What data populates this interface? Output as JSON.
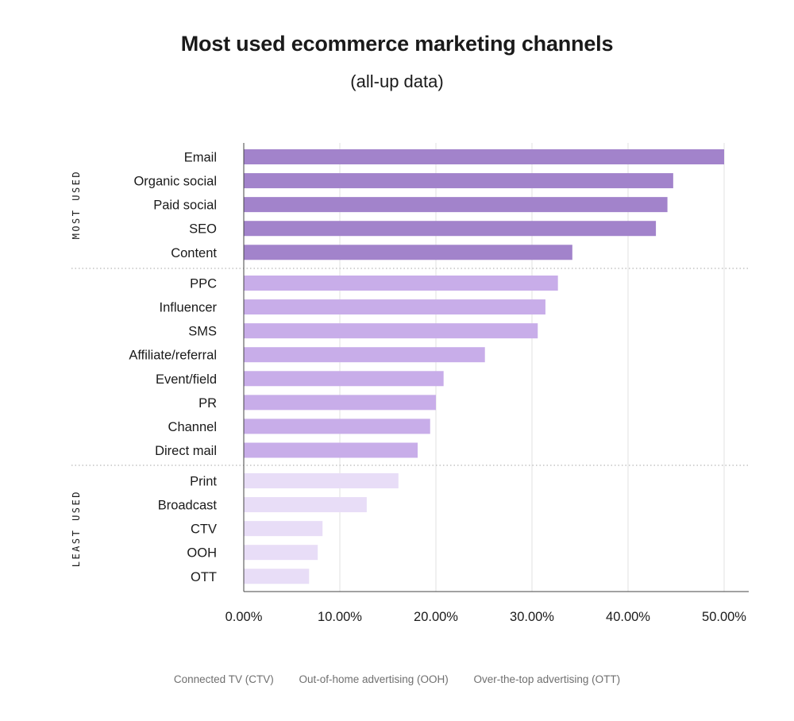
{
  "chart_data": {
    "type": "bar",
    "orientation": "horizontal",
    "title": "Most used ecommerce marketing channels",
    "subtitle": "(all-up data)",
    "categories": [
      "Email",
      "Organic social",
      "Paid social",
      "SEO",
      "Content",
      "PPC",
      "Influencer",
      "SMS",
      "Affiliate/referral",
      "Event/field",
      "PR",
      "Channel",
      "Direct mail",
      "Print",
      "Broadcast",
      "CTV",
      "OOH",
      "OTT"
    ],
    "values": [
      50.0,
      44.7,
      44.1,
      42.9,
      34.2,
      32.7,
      31.4,
      30.6,
      25.1,
      20.8,
      20.0,
      19.4,
      18.1,
      16.1,
      12.8,
      8.2,
      7.7,
      6.8
    ],
    "xlim": [
      0,
      50
    ],
    "xticks": [
      "0.00%",
      "10.00%",
      "20.00%",
      "30.00%",
      "40.00%",
      "50.00%"
    ],
    "grid": "vertical",
    "groups": [
      {
        "label": "MOST USED",
        "start": 0,
        "end": 4,
        "color": "#a283cb"
      },
      {
        "label": "",
        "start": 5,
        "end": 12,
        "color": "#c8ade9"
      },
      {
        "label": "LEAST USED",
        "start": 13,
        "end": 17,
        "color": "#e8ddf7"
      }
    ]
  },
  "footnotes": [
    "Connected TV (CTV)",
    "Out-of-home advertising (OOH)",
    "Over-the-top advertising (OTT)"
  ]
}
